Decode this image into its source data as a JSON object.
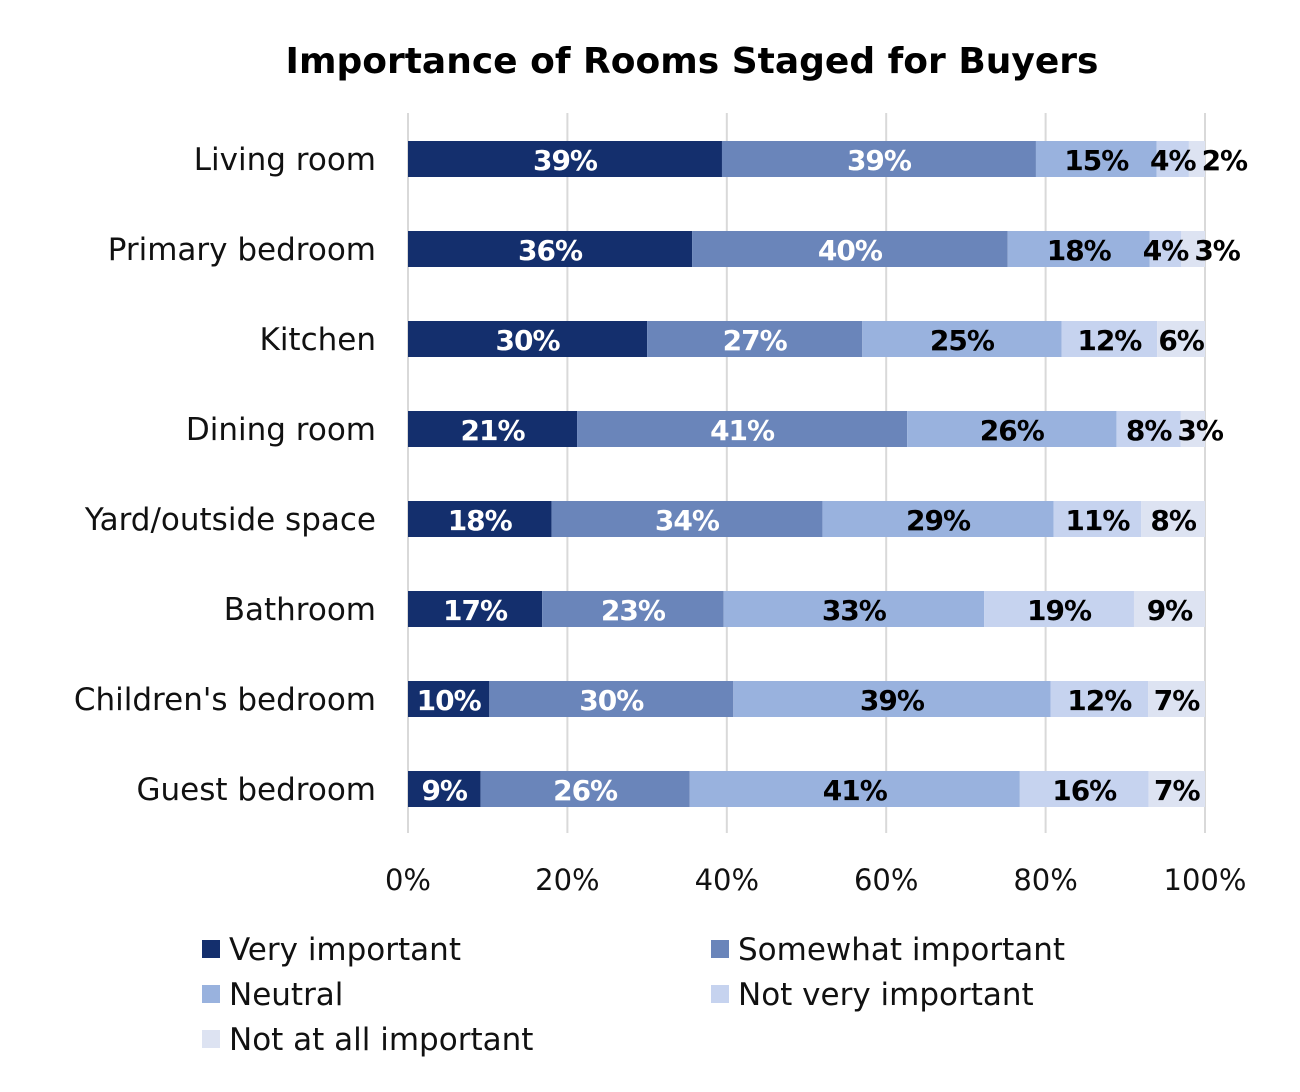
{
  "chart_data": {
    "type": "bar",
    "orientation": "horizontal",
    "stacked": true,
    "percent_stacked": true,
    "title": "Importance of Rooms Staged for Buyers",
    "xlabel": "",
    "ylabel": "",
    "xlim": [
      0,
      100
    ],
    "x_ticks": [
      "0%",
      "20%",
      "40%",
      "60%",
      "80%",
      "100%"
    ],
    "grid": true,
    "legend_position": "bottom",
    "categories": [
      "Living room",
      "Primary bedroom",
      "Kitchen",
      "Dining room",
      "Yard/outside space",
      "Bathroom",
      "Children's bedroom",
      "Guest bedroom"
    ],
    "series": [
      {
        "name": "Very important",
        "color": "#142f6d",
        "values": [
          39,
          36,
          30,
          21,
          18,
          17,
          10,
          9
        ]
      },
      {
        "name": "Somewhat important",
        "color": "#6a85ba",
        "values": [
          39,
          40,
          27,
          41,
          34,
          23,
          30,
          26
        ]
      },
      {
        "name": "Neutral",
        "color": "#99b2de",
        "values": [
          15,
          18,
          25,
          26,
          29,
          33,
          39,
          41
        ]
      },
      {
        "name": "Not very important",
        "color": "#c6d3ef",
        "values": [
          4,
          4,
          12,
          8,
          11,
          19,
          12,
          16
        ]
      },
      {
        "name": "Not at all important",
        "color": "#dde3f2",
        "values": [
          2,
          3,
          6,
          3,
          8,
          9,
          7,
          7
        ]
      }
    ]
  }
}
